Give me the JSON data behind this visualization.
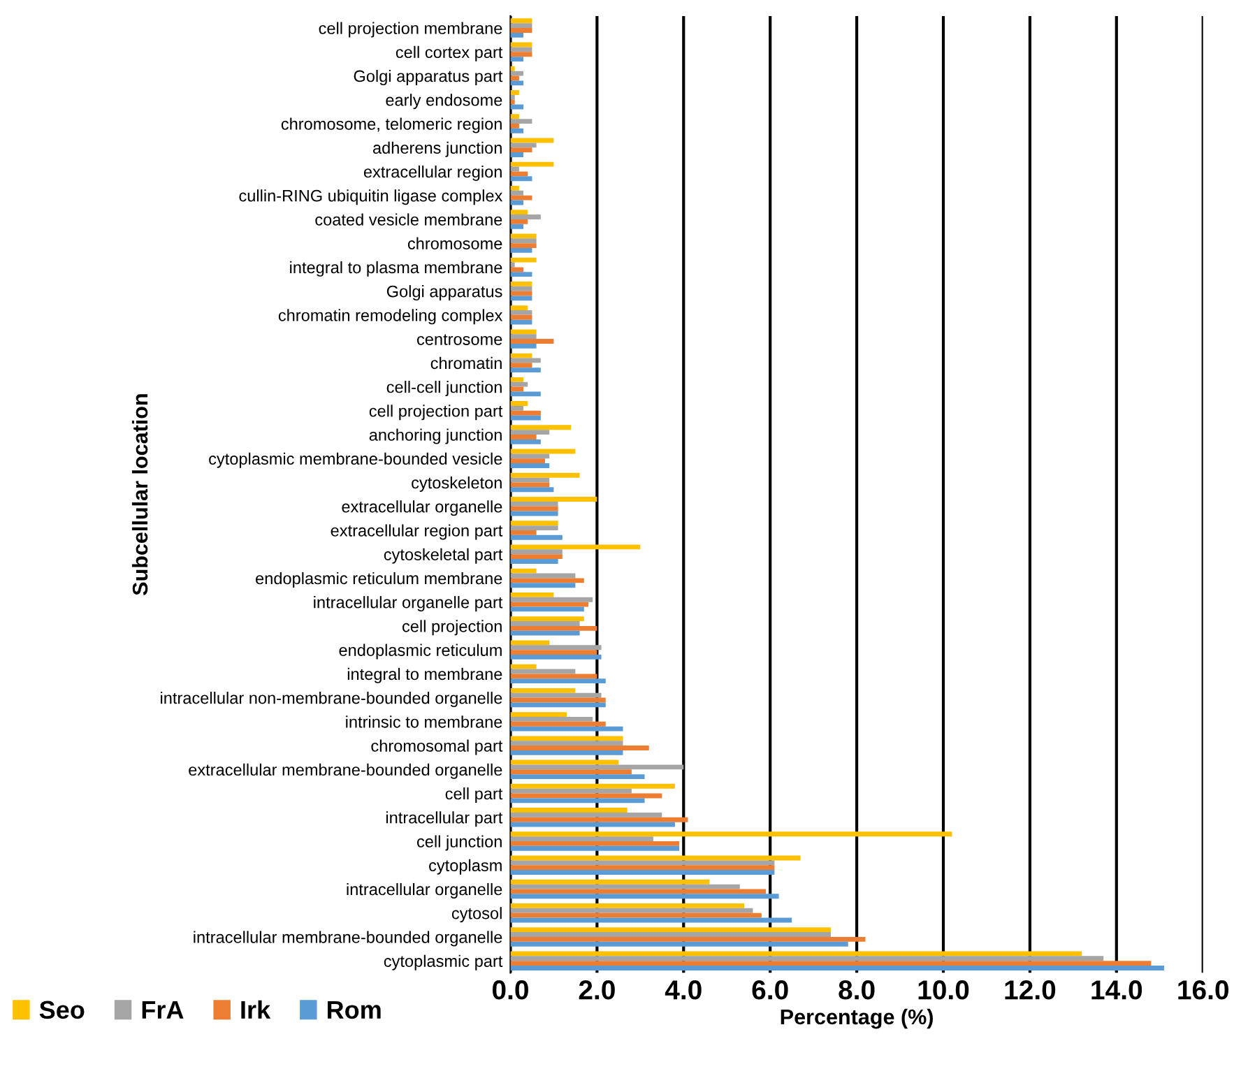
{
  "chart_data": {
    "type": "bar",
    "orientation": "horizontal",
    "xlabel": "Percentage (%)",
    "ylabel": "Subcellular location",
    "categories": [
      "cell projection membrane",
      "cell cortex part",
      "Golgi apparatus part",
      "early endosome",
      "chromosome, telomeric region",
      "adherens junction",
      "extracellular region",
      "cullin-RING ubiquitin ligase complex",
      "coated vesicle membrane",
      "chromosome",
      "integral to plasma membrane",
      "Golgi apparatus",
      "chromatin remodeling complex",
      "centrosome",
      "chromatin",
      "cell-cell junction",
      "cell projection part",
      "anchoring junction",
      "cytoplasmic membrane-bounded vesicle",
      "cytoskeleton",
      "extracellular organelle",
      "extracellular region part",
      "cytoskeletal part",
      "endoplasmic reticulum membrane",
      "intracellular organelle part",
      "cell projection",
      "endoplasmic reticulum",
      "integral to membrane",
      "intracellular non-membrane-bounded organelle",
      "intrinsic to membrane",
      "chromosomal part",
      "extracellular membrane-bounded organelle",
      "cell part",
      "intracellular part",
      "cell junction",
      "cytoplasm",
      "intracellular organelle",
      "cytosol",
      "intracellular membrane-bounded organelle",
      "cytoplasmic part"
    ],
    "series": [
      {
        "name": "Seo",
        "color": "#ffc000",
        "values": [
          0.5,
          0.5,
          0.1,
          0.2,
          0.2,
          1.0,
          1.0,
          0.2,
          0.4,
          0.6,
          0.6,
          0.5,
          0.4,
          0.6,
          0.5,
          0.3,
          0.4,
          1.4,
          1.5,
          1.6,
          2.0,
          1.1,
          3.0,
          0.6,
          1.0,
          1.7,
          0.9,
          0.6,
          1.5,
          1.3,
          2.6,
          2.5,
          3.8,
          2.7,
          10.2,
          6.7,
          4.6,
          5.4,
          7.4,
          13.2
        ]
      },
      {
        "name": "FrA",
        "color": "#a5a5a5",
        "values": [
          0.5,
          0.5,
          0.3,
          0.1,
          0.5,
          0.6,
          0.2,
          0.3,
          0.7,
          0.6,
          0.1,
          0.5,
          0.5,
          0.6,
          0.7,
          0.4,
          0.3,
          0.9,
          0.9,
          0.9,
          1.1,
          1.1,
          1.2,
          1.5,
          1.9,
          1.6,
          2.1,
          1.5,
          2.1,
          1.9,
          2.6,
          4.0,
          2.8,
          3.5,
          3.3,
          6.1,
          5.3,
          5.6,
          7.4,
          13.7
        ]
      },
      {
        "name": "Irk",
        "color": "#ed7d31",
        "values": [
          0.5,
          0.5,
          0.2,
          0.1,
          0.2,
          0.5,
          0.4,
          0.5,
          0.4,
          0.6,
          0.3,
          0.5,
          0.5,
          1.0,
          0.5,
          0.3,
          0.7,
          0.6,
          0.8,
          0.9,
          1.1,
          0.6,
          1.2,
          1.7,
          1.8,
          2.0,
          2.0,
          2.0,
          2.2,
          2.2,
          3.2,
          2.8,
          3.5,
          4.1,
          3.9,
          6.1,
          5.9,
          5.8,
          8.2,
          14.8
        ]
      },
      {
        "name": "Rom",
        "color": "#5b9bd5",
        "values": [
          0.3,
          0.3,
          0.3,
          0.3,
          0.3,
          0.3,
          0.5,
          0.3,
          0.3,
          0.5,
          0.5,
          0.5,
          0.5,
          0.6,
          0.7,
          0.7,
          0.7,
          0.7,
          0.9,
          1.0,
          1.1,
          1.2,
          1.1,
          1.5,
          1.7,
          1.6,
          2.1,
          2.2,
          2.2,
          2.6,
          2.6,
          3.1,
          3.1,
          3.8,
          3.9,
          6.1,
          6.2,
          6.5,
          7.8,
          15.1
        ]
      }
    ],
    "xlim": [
      0,
      16
    ],
    "xticks": [
      {
        "value": 0,
        "label": "0.0"
      },
      {
        "value": 2,
        "label": "2.0"
      },
      {
        "value": 4,
        "label": "4.0"
      },
      {
        "value": 6,
        "label": "6.0"
      },
      {
        "value": 8,
        "label": "8.0"
      },
      {
        "value": 10,
        "label": "10.0"
      },
      {
        "value": 12,
        "label": "12.0"
      },
      {
        "value": 14,
        "label": "14.0"
      },
      {
        "value": 16,
        "label": "16.0"
      }
    ],
    "grid": "x",
    "legend": "bottom left"
  }
}
